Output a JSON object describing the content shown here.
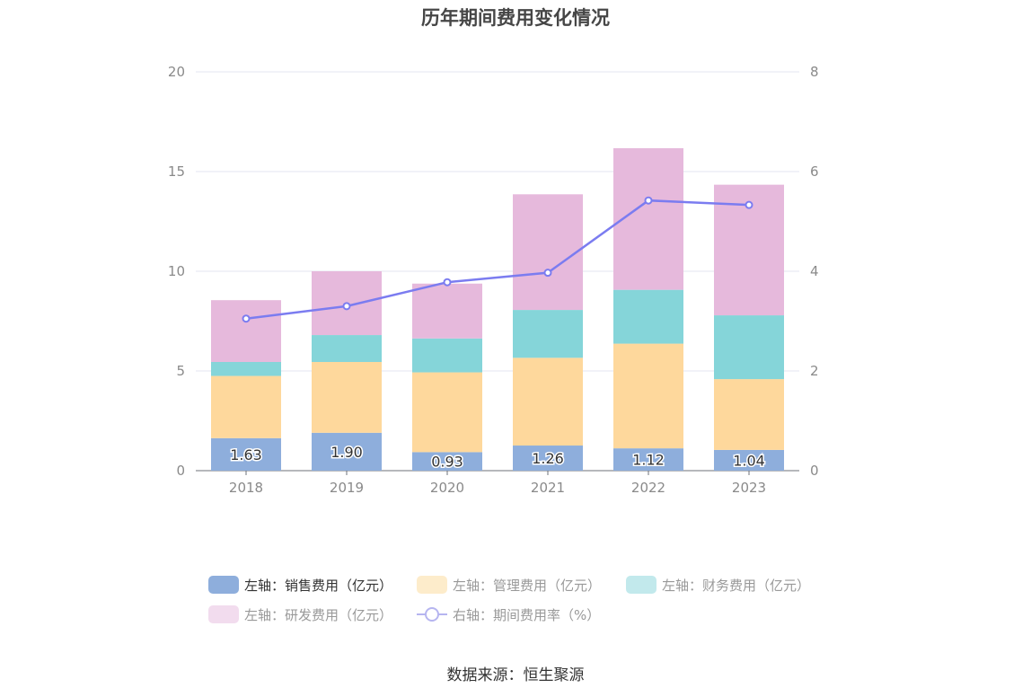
{
  "chart_data": {
    "type": "bar",
    "title": "历年期间费用变化情况",
    "categories": [
      "2018",
      "2019",
      "2020",
      "2021",
      "2022",
      "2023"
    ],
    "y_left_ticks": [
      "0",
      "5",
      "10",
      "15",
      "20"
    ],
    "y_right_ticks": [
      "0",
      "2",
      "4",
      "6",
      "8"
    ],
    "ylim_left": [
      0,
      20
    ],
    "ylim_right": [
      0,
      8
    ],
    "stacked": true,
    "grid": true,
    "legend_position": "bottom",
    "series": [
      {
        "name": "左轴：销售费用（亿元）",
        "axis": "left",
        "type": "bar",
        "color": "#8eaedc",
        "values": [
          1.63,
          1.9,
          0.93,
          1.26,
          1.12,
          1.04
        ],
        "labels": [
          "1.63",
          "1.90",
          "0.93",
          "1.26",
          "1.12",
          "1.04"
        ]
      },
      {
        "name": "左轴：管理费用（亿元）",
        "axis": "left",
        "type": "bar",
        "color": "#fed89c",
        "values": [
          3.12,
          3.55,
          4.0,
          4.4,
          5.25,
          3.55
        ]
      },
      {
        "name": "左轴：财务费用（亿元）",
        "axis": "left",
        "type": "bar",
        "color": "#85d5d9",
        "values": [
          0.7,
          1.35,
          1.7,
          2.4,
          2.7,
          3.2
        ]
      },
      {
        "name": "左轴：研发费用（亿元）",
        "axis": "left",
        "type": "bar",
        "color": "#e6b9dc",
        "values": [
          3.1,
          3.2,
          2.75,
          5.8,
          7.1,
          6.55
        ]
      },
      {
        "name": "右轴：期间费用率（%）",
        "axis": "right",
        "type": "line",
        "color": "#7b7cf0",
        "values": [
          3.05,
          3.3,
          3.78,
          3.97,
          5.42,
          5.33
        ]
      }
    ]
  },
  "legend": {
    "sales": "左轴：销售费用（亿元）",
    "admin": "左轴：管理费用（亿元）",
    "finance": "左轴：财务费用（亿元）",
    "rnd": "左轴：研发费用（亿元）",
    "rate": "右轴：期间费用率（%）"
  },
  "legend_colors": {
    "sales": "#8eaedc",
    "admin": "#fdeccb",
    "finance": "#c2e9ec",
    "rnd": "#f2dcee"
  },
  "source": "数据来源：恒生聚源"
}
